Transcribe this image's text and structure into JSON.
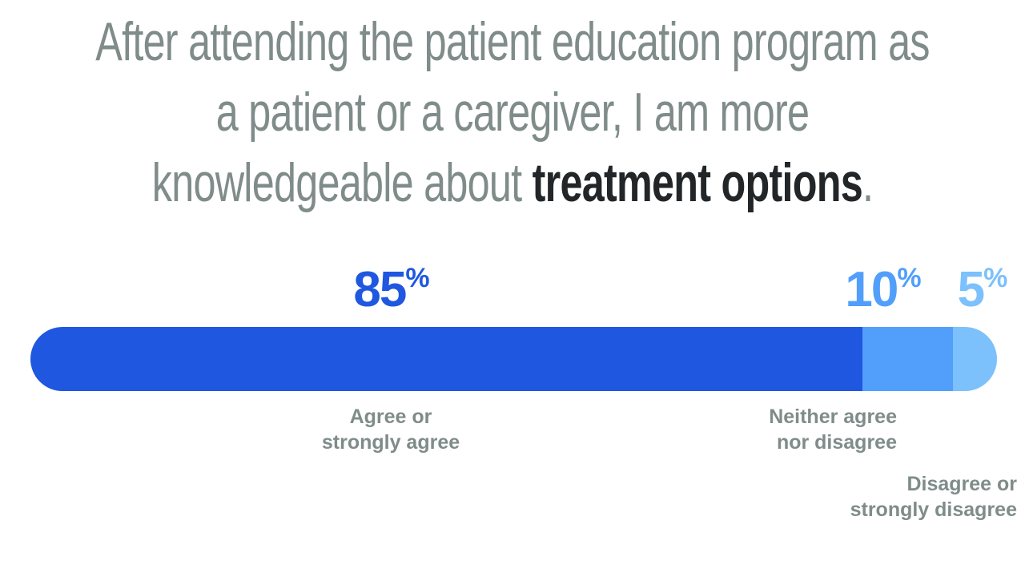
{
  "title": {
    "line1": "After attending the patient education program as",
    "line2": "a patient or a caregiver, I am more",
    "line3_prefix": "knowledgeable about ",
    "line3_bold": "treatment options",
    "line3_suffix": "."
  },
  "chart_data": {
    "type": "bar",
    "orientation": "horizontal-stacked",
    "unit": "%",
    "categories": [
      "Agree or strongly agree",
      "Neither agree nor disagree",
      "Disagree or strongly disagree"
    ],
    "label_lines": [
      [
        "Agree or",
        "strongly agree"
      ],
      [
        "Neither agree",
        "nor disagree"
      ],
      [
        "Disagree or",
        "strongly disagree"
      ]
    ],
    "values": [
      85,
      10,
      5
    ],
    "value_labels": [
      "85",
      "10",
      "5"
    ],
    "colors": [
      "#1f57e0",
      "#519ffb",
      "#7cc0fc"
    ],
    "xlim": [
      0,
      100
    ],
    "legend": "none",
    "grid": false
  }
}
